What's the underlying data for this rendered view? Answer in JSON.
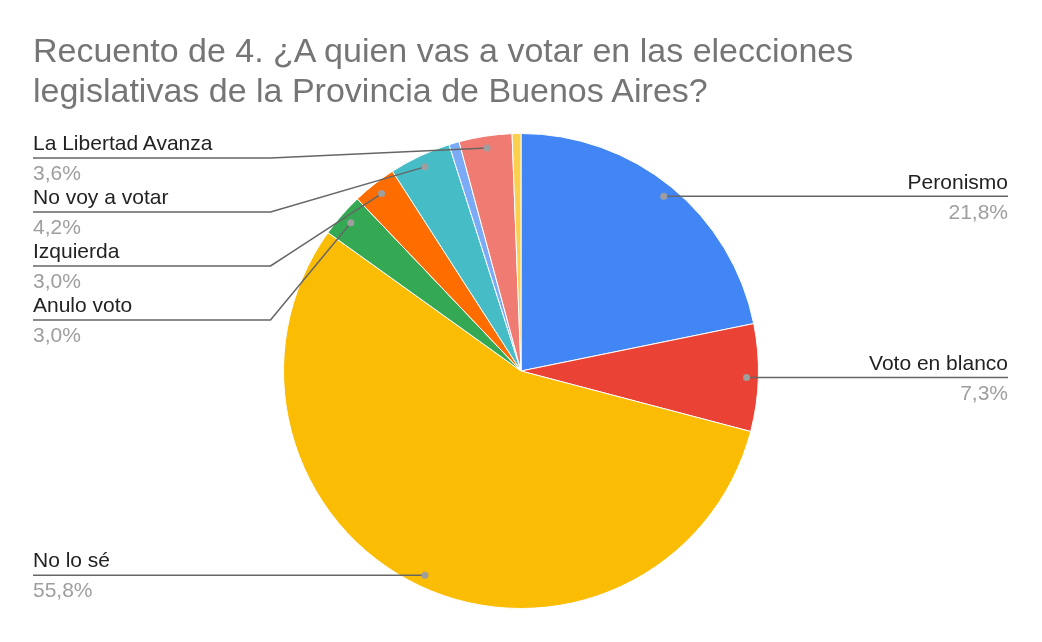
{
  "chart_data": {
    "type": "pie",
    "title": "Recuento de 4. ¿A quien vas a votar en las elecciones legislativas de la Provincia de Buenos Aires?",
    "categories": [
      "Peronismo",
      "Voto en blanco",
      "No lo sé",
      "Anulo voto",
      "Izquierda",
      "No voy a votar",
      null,
      "La Libertad Avanza",
      null
    ],
    "values": [
      21.8,
      7.3,
      55.8,
      3.0,
      3.0,
      4.2,
      0.7,
      3.6,
      0.6
    ],
    "value_labels": [
      "21,8%",
      "7,3%",
      "55,8%",
      "3,0%",
      "3,0%",
      "4,2%",
      null,
      "3,6%",
      null
    ],
    "colors": [
      "#4285f4",
      "#ea4335",
      "#fbbc04",
      "#34a853",
      "#ff6d01",
      "#46bdc6",
      "#7baaf7",
      "#f07b72",
      "#fcd04f"
    ]
  }
}
